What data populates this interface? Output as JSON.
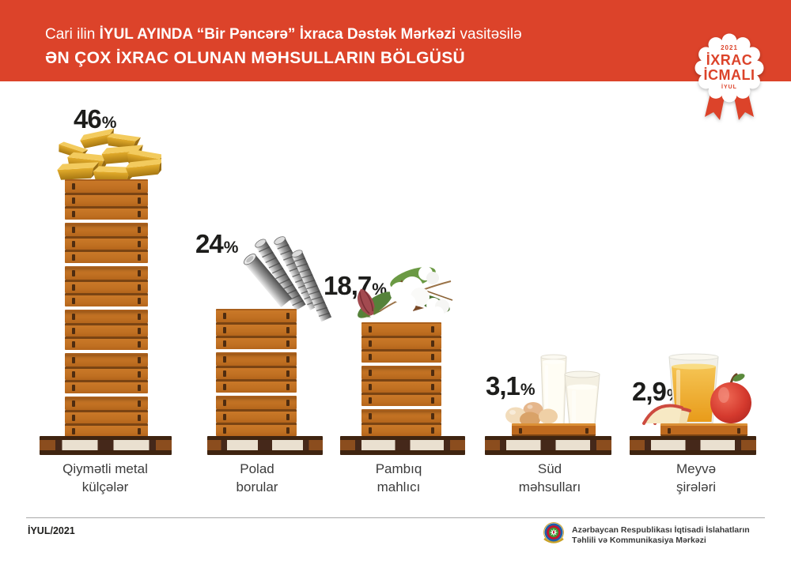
{
  "header": {
    "line1_prefix": "Cari ilin ",
    "line1_bold": "İYUL AYINDA “Bir Pəncərə” İxraca Dəstək Mərkəzi",
    "line1_suffix": " vasitəsilə",
    "line2": "ƏN ÇOX İXRAC OLUNAN MƏHSULLARIN BÖLGÜSÜ"
  },
  "badge": {
    "year": "2021",
    "title_line1": "İXRAC",
    "title_line2": "İCMALI",
    "month": "İYUL"
  },
  "chart_data": {
    "type": "bar",
    "title": "Cari ilin İYUL AYINDA “Bir Pəncərə” İxraca Dəstək Mərkəzi vasitəsilə ən çox ixrac olunan məhsulların bölgüsü",
    "categories": [
      "Qiymətli metal külçələr",
      "Polad borular",
      "Pambıq mahlıcı",
      "Süd məhsulları",
      "Meyvə şirələri"
    ],
    "values": [
      46,
      24,
      18.7,
      3.1,
      2.9
    ],
    "value_labels": [
      "46",
      "24",
      "18,7",
      "3,1",
      "2,9"
    ],
    "unit": "%",
    "period": "İYUL/2021",
    "legend_position": "none",
    "grid": false
  },
  "columns": [
    {
      "value": "46",
      "label_line1": "Qiymətli metal",
      "label_line2": "külçələr",
      "icon": "gold-bars"
    },
    {
      "value": "24",
      "label_line1": "Polad",
      "label_line2": "borular",
      "icon": "steel-rods"
    },
    {
      "value": "18,7",
      "label_line1": "Pambıq",
      "label_line2": "mahlıcı",
      "icon": "cotton"
    },
    {
      "value": "3,1",
      "label_line1": "Süd",
      "label_line2": "məhsulları",
      "icon": "milk-and-eggs"
    },
    {
      "value": "2,9",
      "label_line1": "Meyvə",
      "label_line2": "şirələri",
      "icon": "juice-and-apple"
    }
  ],
  "footer": {
    "date": "İYUL/2021",
    "org_line1": "Azərbaycan Respublikası İqtisadi İslahatların",
    "org_line2": "Təhlili və Kommunikasiya Mərkəzi"
  },
  "colors": {
    "accent_red": "#DC432A",
    "crate_orange": "#C07022",
    "pallet_dark": "#3F2410",
    "pallet_cream": "#EAE0D0",
    "text_dark": "#1d1d1b",
    "label_gray": "#3C3C3C"
  }
}
